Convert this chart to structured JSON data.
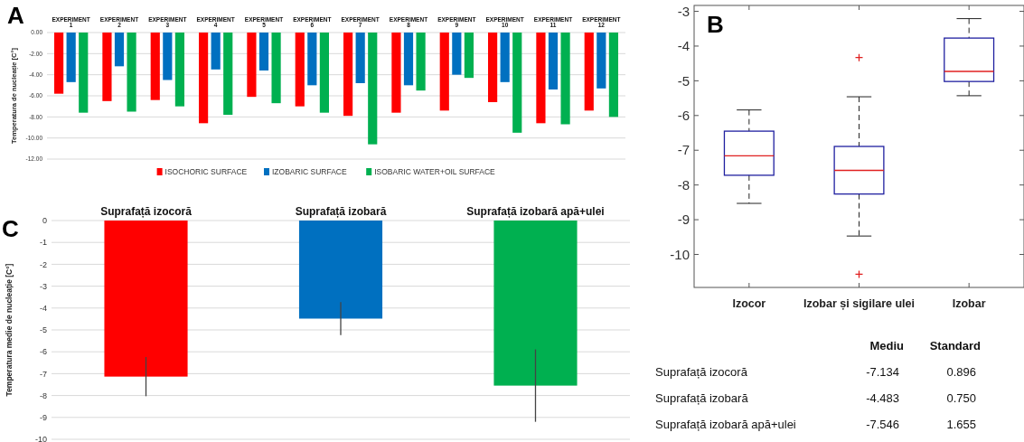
{
  "chart_data": [
    {
      "type": "bar",
      "title": "A",
      "ylabel": "Temperatura de nucleație [C°]",
      "categories": [
        "EXPERIMENT 1",
        "EXPERIMENT 2",
        "EXPERIMENT 3",
        "EXPERIMENT 4",
        "EXPERIMENT 5",
        "EXPERIMENT 6",
        "EXPERIMENT 7",
        "EXPERIMENT 8",
        "EXPERIMENT 9",
        "EXPERIMENT 10",
        "EXPERIMENT 11",
        "EXPERIMENT 12"
      ],
      "series": [
        {
          "name": "ISOCHORIC SURFACE",
          "color": "#ff0000",
          "values": [
            -5.8,
            -6.5,
            -6.4,
            -8.6,
            -6.1,
            -7.0,
            -7.9,
            -7.6,
            -7.4,
            -6.6,
            -8.6,
            -7.4
          ]
        },
        {
          "name": "IZOBARIC SURFACE",
          "color": "#0070c0",
          "values": [
            -4.7,
            -3.2,
            -4.5,
            -3.5,
            -3.6,
            -5.0,
            -4.8,
            -5.0,
            -4.0,
            -4.7,
            -5.4,
            -5.3
          ]
        },
        {
          "name": "ISOBARIC WATER+OIL SURFACE",
          "color": "#00b050",
          "values": [
            -7.6,
            -7.5,
            -7.0,
            -7.8,
            -6.7,
            -7.6,
            -10.6,
            -5.5,
            -4.3,
            -9.5,
            -8.7,
            -8.0
          ]
        }
      ],
      "ylim": [
        -12,
        0
      ],
      "yticks": [
        {
          "value": 0,
          "label": "0.00"
        },
        {
          "value": -2,
          "label": "-2.00"
        },
        {
          "value": -4,
          "label": "-4.00"
        },
        {
          "value": -6,
          "label": "-6.00"
        },
        {
          "value": -8,
          "label": "-8.00"
        },
        {
          "value": -10,
          "label": "-10.00"
        },
        {
          "value": -12,
          "label": "-12.00"
        }
      ],
      "grid": "y",
      "legend": "bottom"
    },
    {
      "type": "box",
      "title": "B",
      "categories": [
        "Izocor",
        "Izobar și sigilare ulei",
        "Izobar"
      ],
      "series": [
        {
          "color": "#2020a0",
          "boxes": [
            {
              "low": -8.53,
              "q1": -7.72,
              "median": -7.16,
              "q3": -6.45,
              "high": -5.84
            },
            {
              "low": -9.47,
              "q1": -8.26,
              "median": -7.58,
              "q3": -6.89,
              "high": -5.46,
              "outliers": [
                -4.33,
                -10.57
              ]
            },
            {
              "low": -5.43,
              "q1": -5.02,
              "median": -4.73,
              "q3": -3.77,
              "high": -3.21
            }
          ]
        }
      ],
      "ylim": [
        -10.95,
        -2.83
      ],
      "yticks": [
        -3,
        -4,
        -5,
        -6,
        -7,
        -8,
        -9,
        -10
      ],
      "grid": false
    },
    {
      "type": "bar",
      "title": "C",
      "ylabel": "Temperatura medie de nucleație [C°]",
      "categories": [
        "Suprafață izocoră",
        "Suprafață izobară",
        "Suprafață izobară apă+ulei"
      ],
      "values": [
        -7.134,
        -4.483,
        -7.546
      ],
      "errors": [
        0.896,
        0.75,
        1.655
      ],
      "colors": [
        "#ff0000",
        "#0070c0",
        "#00b050"
      ],
      "ylim": [
        -10,
        0
      ],
      "yticks": [
        0,
        -1,
        -2,
        -3,
        -4,
        -5,
        -6,
        -7,
        -8,
        -9,
        -10
      ],
      "grid": "y"
    },
    {
      "type": "other",
      "annotations": [
        "Mediu",
        "Standard",
        "Suprafață izocoră",
        "-7.134",
        "0.896",
        "Suprafață izobară",
        "-4.483",
        "0.750",
        "Suprafață izobară apă+ulei",
        "-7.546",
        "1.655"
      ]
    }
  ]
}
